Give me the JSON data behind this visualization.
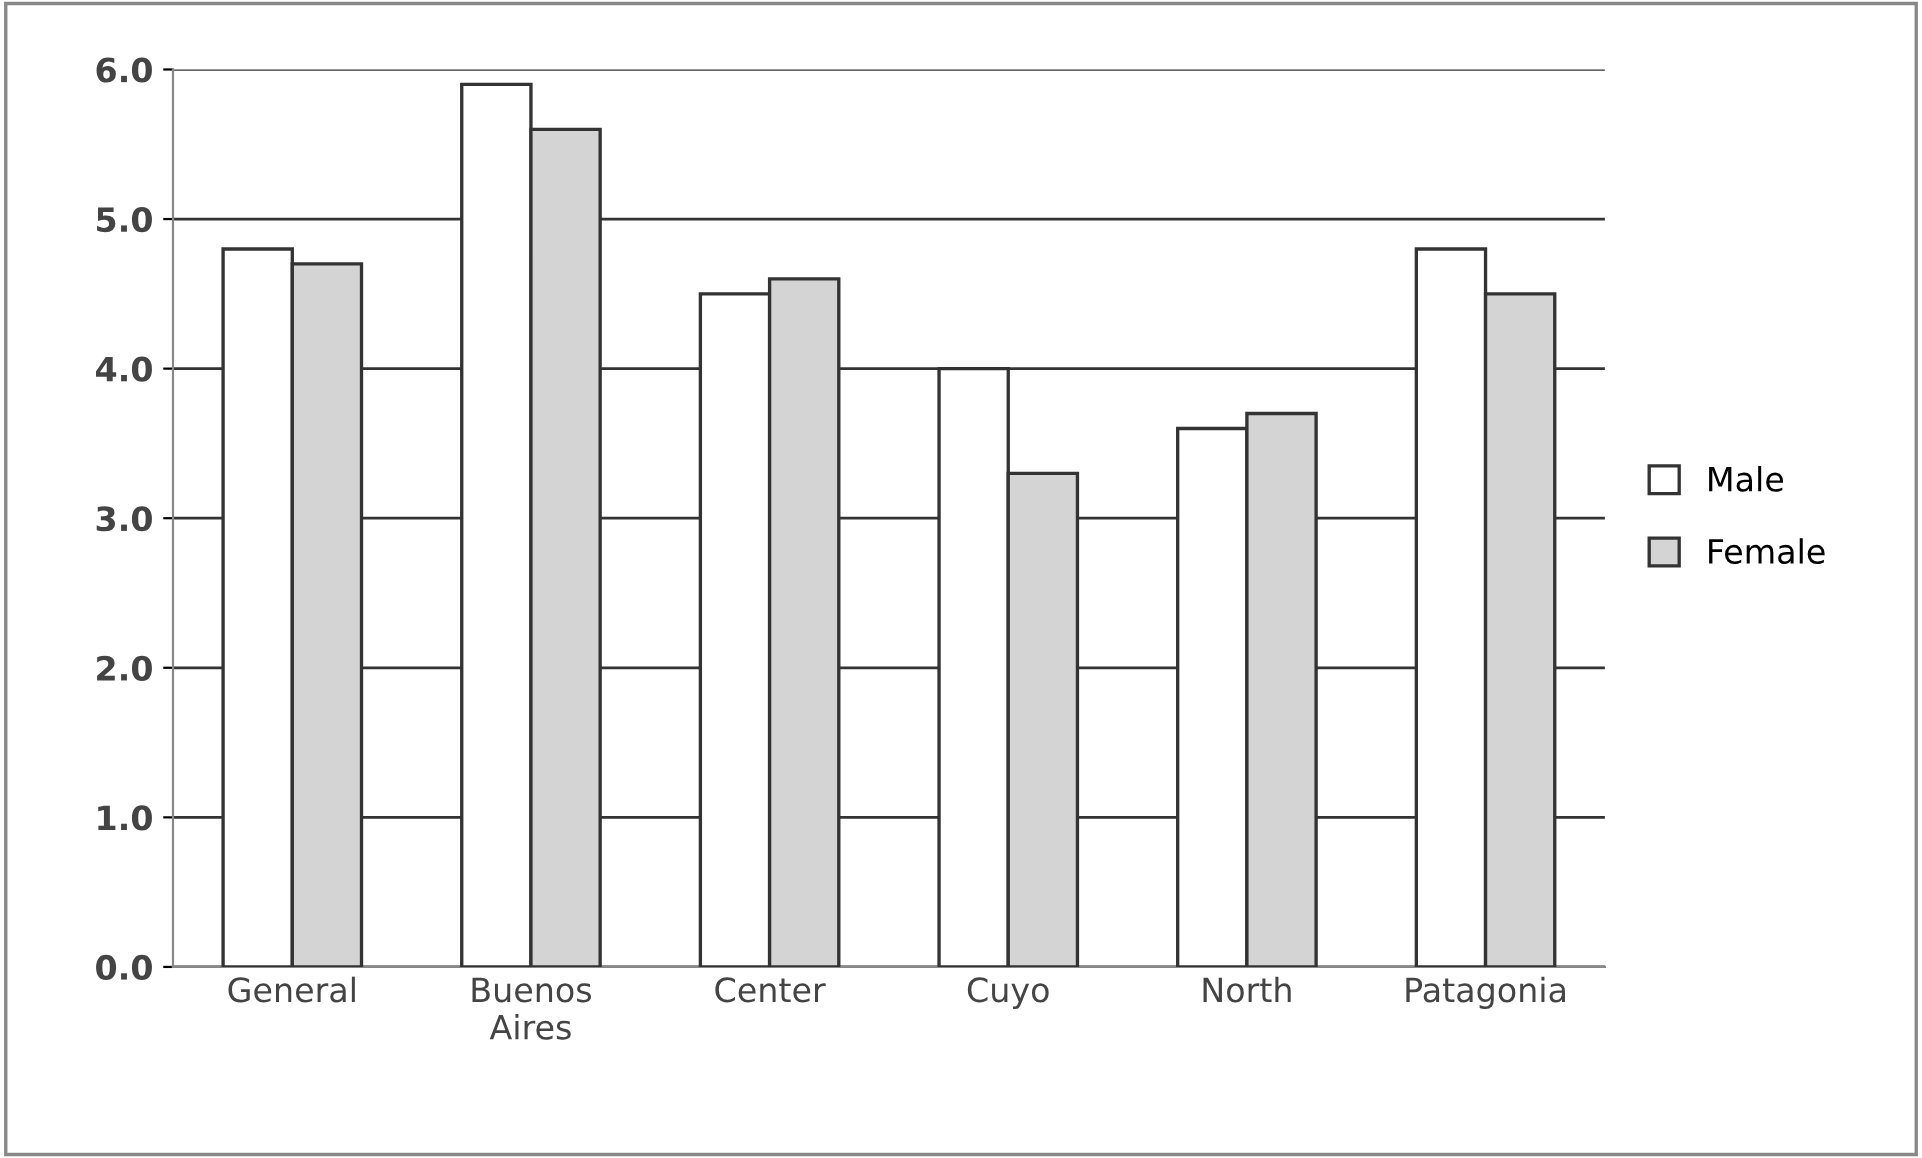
{
  "chart_data": {
    "type": "bar",
    "categories": [
      "General",
      "Buenos\nAires",
      "Center",
      "Cuyo",
      "North",
      "Patagonia"
    ],
    "series": [
      {
        "name": "Male",
        "color": "#ffffff",
        "values": [
          4.8,
          5.9,
          4.5,
          4.0,
          3.6,
          4.8
        ]
      },
      {
        "name": "Female",
        "color": "#d4d4d4",
        "values": [
          4.7,
          5.6,
          4.6,
          3.3,
          3.7,
          4.5
        ]
      }
    ],
    "ylim": [
      0,
      6
    ],
    "yticks": [
      {
        "value": 0,
        "label": "0.0"
      },
      {
        "value": 1,
        "label": "1.0"
      },
      {
        "value": 2,
        "label": "2.0"
      },
      {
        "value": 3,
        "label": "3.0"
      },
      {
        "value": 4,
        "label": "4.0"
      },
      {
        "value": 5,
        "label": "5.0"
      },
      {
        "value": 6,
        "label": "6.0"
      }
    ],
    "grid": "y",
    "legend": "right"
  }
}
